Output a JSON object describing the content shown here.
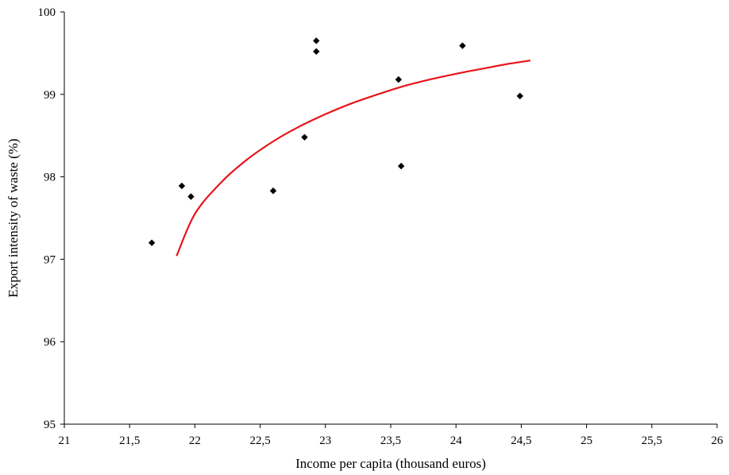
{
  "chart_data": {
    "type": "scatter",
    "title": "",
    "xlabel": "Income per capita (thousand euros)",
    "ylabel": "Export intensity of waste (%)",
    "xlim": [
      21,
      26
    ],
    "ylim": [
      95,
      100
    ],
    "x_ticks": [
      "21",
      "21,5",
      "22",
      "22,5",
      "23",
      "23,5",
      "24",
      "24,5",
      "25",
      "25,5",
      "26"
    ],
    "y_ticks": [
      "95",
      "96",
      "97",
      "98",
      "99",
      "100"
    ],
    "grid": false,
    "points": [
      {
        "x": 21.67,
        "y": 97.2
      },
      {
        "x": 21.9,
        "y": 97.89
      },
      {
        "x": 21.97,
        "y": 97.76
      },
      {
        "x": 22.6,
        "y": 97.83
      },
      {
        "x": 22.84,
        "y": 98.48
      },
      {
        "x": 22.93,
        "y": 99.65
      },
      {
        "x": 22.93,
        "y": 99.52
      },
      {
        "x": 23.56,
        "y": 99.18
      },
      {
        "x": 23.58,
        "y": 98.13
      },
      {
        "x": 24.05,
        "y": 99.59
      },
      {
        "x": 24.49,
        "y": 98.98
      }
    ],
    "trend": {
      "x": [
        21.86,
        22.0,
        22.2,
        22.4,
        22.6,
        22.8,
        23.0,
        23.2,
        23.4,
        23.6,
        23.8,
        24.0,
        24.2,
        24.4,
        24.57
      ],
      "y": [
        97.04,
        97.55,
        97.93,
        98.21,
        98.43,
        98.61,
        98.76,
        98.89,
        99.0,
        99.1,
        99.18,
        99.25,
        99.31,
        99.37,
        99.41
      ]
    },
    "colors": {
      "points": "#000000",
      "trend": "#e8141b",
      "axis": "#000000"
    }
  }
}
